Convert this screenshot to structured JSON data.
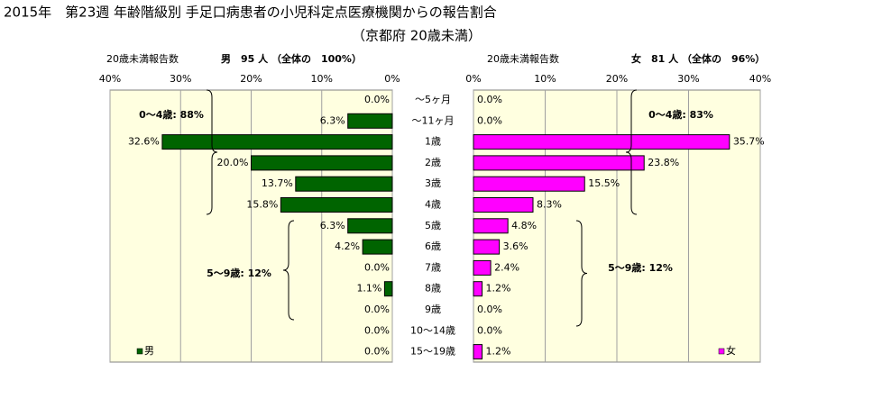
{
  "header": {
    "title": "2015年　第23週 年齢階級別 手足口病患者の小児科定点医療機関からの報告割合",
    "subtitle": "（京都府 20歳未満）"
  },
  "chart_data": [
    {
      "type": "bar",
      "orientation": "horizontal",
      "x_reversed": true,
      "count_label": "20歳未満報告数",
      "total_label": "男　95 人 （全体の　100%）",
      "categories": [
        "～5ヶ月",
        "～11ヶ月",
        "1歳",
        "2歳",
        "3歳",
        "4歳",
        "5歳",
        "6歳",
        "7歳",
        "8歳",
        "9歳",
        "10～14歳",
        "15～19歳"
      ],
      "series": [
        {
          "name": "男",
          "color": "#006400",
          "values": [
            0.0,
            6.3,
            32.6,
            20.0,
            13.7,
            15.8,
            6.3,
            4.2,
            0.0,
            1.1,
            0.0,
            0.0,
            0.0
          ],
          "value_labels": [
            "0.0%",
            "6.3%",
            "32.6%",
            "20.0%",
            "13.7%",
            "15.8%",
            "6.3%",
            "4.2%",
            "0.0%",
            "1.1%",
            "0.0%",
            "0.0%",
            "0.0%"
          ]
        }
      ],
      "xlim": [
        0,
        40
      ],
      "xticks": [
        {
          "value": 40,
          "label": "40%"
        },
        {
          "value": 30,
          "label": "30%"
        },
        {
          "value": 20,
          "label": "20%"
        },
        {
          "value": 10,
          "label": "10%"
        },
        {
          "value": 0,
          "label": "0%"
        }
      ],
      "grid": true,
      "legend": "bottom-left",
      "annotations": [
        "0～4歳: 88%",
        "5～9歳: 12%"
      ]
    },
    {
      "type": "bar",
      "orientation": "horizontal",
      "x_reversed": false,
      "count_label": "20歳未満報告数",
      "total_label": "女　81 人 （全体の　96%）",
      "series": [
        {
          "name": "女",
          "color": "#ff00ff",
          "values": [
            0.0,
            0.0,
            35.7,
            23.8,
            15.5,
            8.3,
            4.8,
            3.6,
            2.4,
            1.2,
            0.0,
            0.0,
            1.2
          ],
          "value_labels": [
            "0.0%",
            "0.0%",
            "35.7%",
            "23.8%",
            "15.5%",
            "8.3%",
            "4.8%",
            "3.6%",
            "2.4%",
            "1.2%",
            "0.0%",
            "0.0%",
            "1.2%"
          ]
        }
      ],
      "xlim": [
        0,
        40
      ],
      "xticks": [
        {
          "value": 0,
          "label": "0%"
        },
        {
          "value": 10,
          "label": "10%"
        },
        {
          "value": 20,
          "label": "20%"
        },
        {
          "value": 30,
          "label": "30%"
        },
        {
          "value": 40,
          "label": "40%"
        }
      ],
      "grid": true,
      "legend": "bottom-right",
      "annotations": [
        "0～4歳: 83%",
        "5～9歳: 12%"
      ]
    }
  ]
}
